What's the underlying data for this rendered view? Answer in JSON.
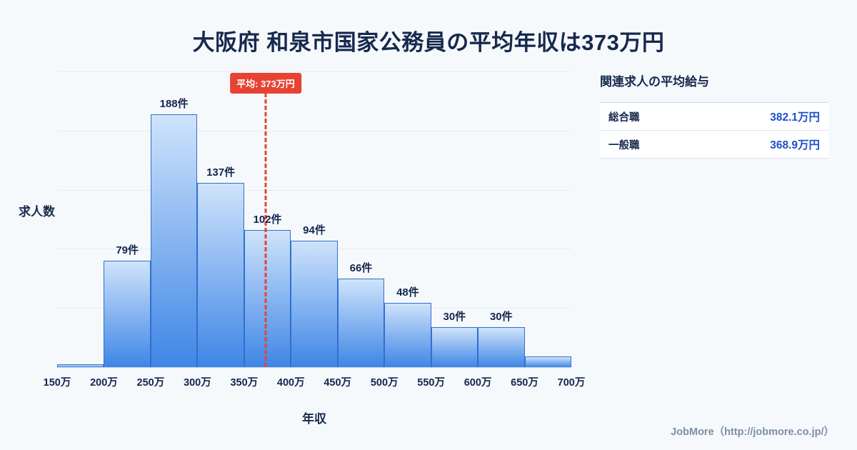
{
  "title": "大阪府 和泉市国家公務員の平均年収は373万円",
  "colors": {
    "title_navy": "#16294e",
    "bar_top": "#cfe3fb",
    "bar_bottom": "#3e86e6",
    "bar_border": "#2f6fd0",
    "avg_red": "#e84232",
    "value_blue": "#2050c8"
  },
  "chart_data": {
    "type": "bar",
    "title": "大阪府 和泉市国家公務員の平均年収は373万円",
    "categories": [
      "150万-200万",
      "200万-250万",
      "250万-300万",
      "300万-350万",
      "350万-400万",
      "400万-450万",
      "450万-500万",
      "500万-550万",
      "550万-600万",
      "600万-650万",
      "650万-700万"
    ],
    "values": [
      2,
      79,
      188,
      137,
      102,
      94,
      66,
      48,
      30,
      30,
      8
    ],
    "bar_labels": [
      "",
      "79件",
      "188件",
      "137件",
      "102件",
      "94件",
      "66件",
      "48件",
      "30件",
      "30件",
      ""
    ],
    "x_tick_labels": [
      "150万",
      "200万",
      "250万",
      "300万",
      "350万",
      "400万",
      "450万",
      "500万",
      "550万",
      "600万",
      "650万",
      "700万"
    ],
    "xlabel": "年収",
    "ylabel": "求人数",
    "ylim": [
      0,
      220
    ],
    "x_range": [
      150,
      700
    ],
    "grid": "horizontal",
    "average": {
      "value": 373,
      "label": "平均: 373万円"
    }
  },
  "side_panel": {
    "heading": "関連求人の平均給与",
    "rows": [
      {
        "label": "総合職",
        "value": "382.1万円"
      },
      {
        "label": "一般職",
        "value": "368.9万円"
      }
    ]
  },
  "footer": {
    "credit": "JobMore（http://jobmore.co.jp/）"
  }
}
